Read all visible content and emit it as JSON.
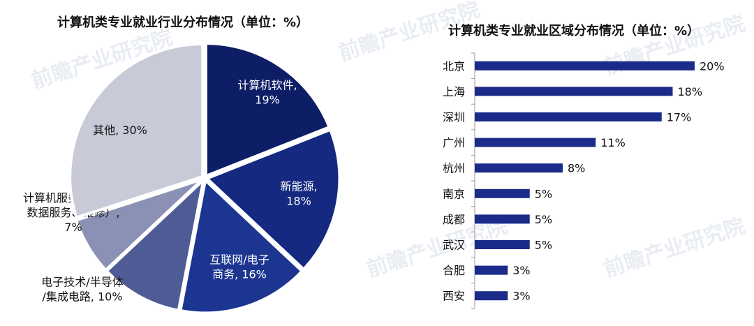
{
  "watermark": "前瞻产业研究院",
  "charts": {
    "pie_title": "计算机类专业就业行业分布情况（单位：%）",
    "bar_title": "计算机类专业就业区域分布情况（单位：%）"
  },
  "chart_data": [
    {
      "type": "pie",
      "title": "计算机类专业就业行业分布情况（单位：%）",
      "slices": [
        {
          "label": [
            "计算机软件,",
            "19%"
          ],
          "value": 19,
          "color": "#0e1e66"
        },
        {
          "label": [
            "新能源,",
            "18%"
          ],
          "value": 18,
          "color": "#14297f"
        },
        {
          "label": [
            "互联网/电子",
            "商务, 16%"
          ],
          "value": 16,
          "color": "#1c3590"
        },
        {
          "label": [
            "电子技术/半导体",
            "/集成电路, 10%"
          ],
          "value": 10,
          "color": "#4e5b95"
        },
        {
          "label": [
            "计算机服务（系统、",
            "数据服务、维修）,",
            "7%"
          ],
          "value": 7,
          "color": "#8a91b4"
        },
        {
          "label": [
            "其他, 30%"
          ],
          "value": 30,
          "color": "#c8cad8"
        }
      ]
    },
    {
      "type": "bar",
      "orientation": "horizontal",
      "title": "计算机类专业就业区域分布情况（单位：%）",
      "categories": [
        "北京",
        "上海",
        "深圳",
        "广州",
        "杭州",
        "南京",
        "成都",
        "武汉",
        "合肥",
        "西安"
      ],
      "values": [
        20,
        18,
        17,
        11,
        8,
        5,
        5,
        5,
        3,
        3
      ],
      "value_labels": [
        "20%",
        "18%",
        "17%",
        "11%",
        "8%",
        "5%",
        "5%",
        "5%",
        "3%",
        "3%"
      ],
      "bar_color": "#1a2b8a",
      "xlim": [
        0,
        20
      ]
    }
  ]
}
